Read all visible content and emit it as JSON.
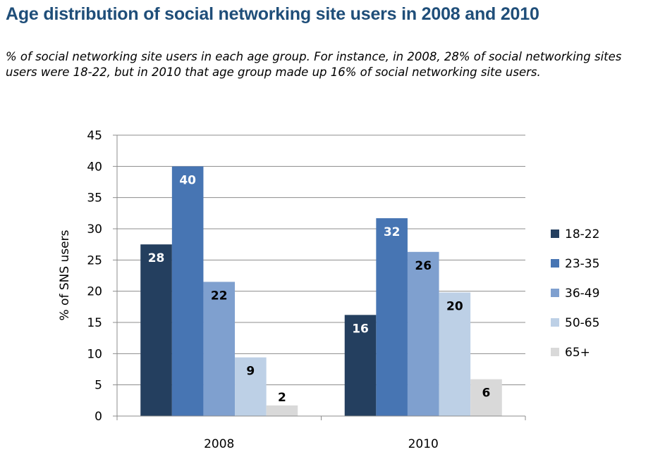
{
  "header": {
    "title": "Age distribution of social networking site users in 2008 and 2010",
    "subtitle": "% of social networking site users in each age group. For instance, in 2008, 28% of social networking sites users were 18-22, but in 2010 that age group made up 16% of social networking site users."
  },
  "chart_data": {
    "type": "bar",
    "title": "Age distribution of social networking site users in 2008 and 2010",
    "subtitle": "% of social networking site users in each age group. For instance, in 2008, 28% of social networking sites users were 18-22, but in 2010 that age group made up 16% of social networking site users.",
    "xlabel": "",
    "ylabel": "% of SNS users",
    "categories": [
      "2008",
      "2010"
    ],
    "ylim": [
      0,
      45
    ],
    "yticks": [
      0,
      5,
      10,
      15,
      20,
      25,
      30,
      35,
      40,
      45
    ],
    "grid": true,
    "legend_position": "right",
    "series": [
      {
        "name": "18-22",
        "color": "#243f5f",
        "label_color": "#ffffff",
        "values": [
          27.5,
          16.2
        ],
        "labels": [
          "28",
          "16"
        ]
      },
      {
        "name": "23-35",
        "color": "#4775b3",
        "label_color": "#ffffff",
        "values": [
          40.0,
          31.7
        ],
        "labels": [
          "40",
          "32"
        ]
      },
      {
        "name": "36-49",
        "color": "#7fa0cf",
        "label_color": "#000000",
        "values": [
          21.5,
          26.3
        ],
        "labels": [
          "22",
          "26"
        ]
      },
      {
        "name": "50-65",
        "color": "#bdd0e6",
        "label_color": "#000000",
        "values": [
          9.4,
          19.8
        ],
        "labels": [
          "9",
          "20"
        ]
      },
      {
        "name": "65+",
        "color": "#d9d9d9",
        "label_color": "#000000",
        "values": [
          1.7,
          5.9
        ],
        "labels": [
          "2",
          "6"
        ]
      }
    ]
  }
}
